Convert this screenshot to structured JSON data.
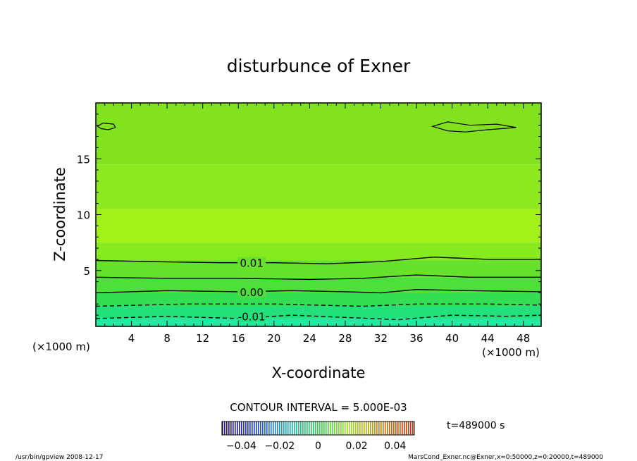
{
  "chart_data": {
    "type": "heatmap",
    "title": "disturbunce of Exner",
    "xlabel": "X-coordinate",
    "ylabel": "Z-coordinate",
    "x_unit": "(×1000 m)",
    "y_unit": "(×1000 m)",
    "xlim": [
      0,
      50
    ],
    "ylim": [
      0,
      20
    ],
    "x_ticks": [
      "4",
      "8",
      "12",
      "16",
      "20",
      "24",
      "28",
      "32",
      "36",
      "40",
      "44",
      "48"
    ],
    "y_ticks": [
      "5",
      "10",
      "15"
    ],
    "contour_interval_label": "CONTOUR INTERVAL = 5.000E-03",
    "contour_labels": [
      {
        "text": "0.01",
        "x": 17.5,
        "z": 5.7
      },
      {
        "text": "0.00",
        "x": 17.5,
        "z": 3.1
      },
      {
        "text": "-0.01",
        "x": 17.5,
        "z": 0.9
      }
    ],
    "contours": [
      {
        "level": 0.01,
        "style": "solid",
        "points": [
          [
            0,
            5.9
          ],
          [
            6,
            5.8
          ],
          [
            14,
            5.7
          ],
          [
            20,
            5.7
          ],
          [
            26,
            5.6
          ],
          [
            32,
            5.8
          ],
          [
            38,
            6.2
          ],
          [
            44,
            6.0
          ],
          [
            50,
            6.0
          ]
        ]
      },
      {
        "level": 0.005,
        "style": "solid",
        "points": [
          [
            0,
            4.4
          ],
          [
            8,
            4.3
          ],
          [
            16,
            4.3
          ],
          [
            24,
            4.2
          ],
          [
            30,
            4.3
          ],
          [
            36,
            4.6
          ],
          [
            42,
            4.4
          ],
          [
            50,
            4.4
          ]
        ]
      },
      {
        "level": 0.0,
        "style": "solid",
        "points": [
          [
            0,
            3.0
          ],
          [
            8,
            3.2
          ],
          [
            16,
            3.1
          ],
          [
            22,
            3.2
          ],
          [
            28,
            3.1
          ],
          [
            32,
            3.0
          ],
          [
            36,
            3.3
          ],
          [
            42,
            3.2
          ],
          [
            50,
            3.1
          ]
        ]
      },
      {
        "level": -0.005,
        "style": "dashed",
        "points": [
          [
            0,
            1.8
          ],
          [
            10,
            2.0
          ],
          [
            20,
            2.0
          ],
          [
            30,
            1.8
          ],
          [
            36,
            2.0
          ],
          [
            44,
            2.0
          ],
          [
            50,
            1.9
          ]
        ]
      },
      {
        "level": -0.01,
        "style": "dashed",
        "points": [
          [
            0,
            0.7
          ],
          [
            8,
            0.9
          ],
          [
            16,
            0.7
          ],
          [
            22,
            1.0
          ],
          [
            28,
            0.8
          ],
          [
            34,
            0.6
          ],
          [
            40,
            1.0
          ],
          [
            46,
            0.9
          ],
          [
            50,
            1.0
          ]
        ]
      }
    ],
    "color_bands": [
      {
        "z0": 0.0,
        "z1": 0.7,
        "color": "#22e8a0"
      },
      {
        "z0": 0.7,
        "z1": 1.8,
        "color": "#22e07a"
      },
      {
        "z0": 1.8,
        "z1": 3.0,
        "color": "#34de52"
      },
      {
        "z0": 3.0,
        "z1": 4.4,
        "color": "#4ee03a"
      },
      {
        "z0": 4.4,
        "z1": 5.9,
        "color": "#66e22c"
      },
      {
        "z0": 5.9,
        "z1": 7.5,
        "color": "#86ea1c"
      },
      {
        "z0": 7.5,
        "z1": 10.5,
        "color": "#a2f21a"
      },
      {
        "z0": 10.5,
        "z1": 14.5,
        "color": "#8ee81e"
      },
      {
        "z0": 14.5,
        "z1": 20.0,
        "color": "#82e21e"
      }
    ],
    "colorbar": {
      "ticks": [
        "-0.04",
        "-0.02",
        "0",
        "0.02",
        "0.04"
      ],
      "range": [
        -0.05,
        0.05
      ],
      "colors": [
        "#2a1070",
        "#2040d0",
        "#20b0c0",
        "#30d050",
        "#a0e020",
        "#c08010",
        "#d03010"
      ]
    },
    "time_label": "t=489000 s"
  },
  "footer": {
    "left": "/usr/bin/gpview   2008-12-17",
    "right": "MarsCond_Exner.nc@Exner,x=0:50000,z=0:20000,t=489000"
  }
}
